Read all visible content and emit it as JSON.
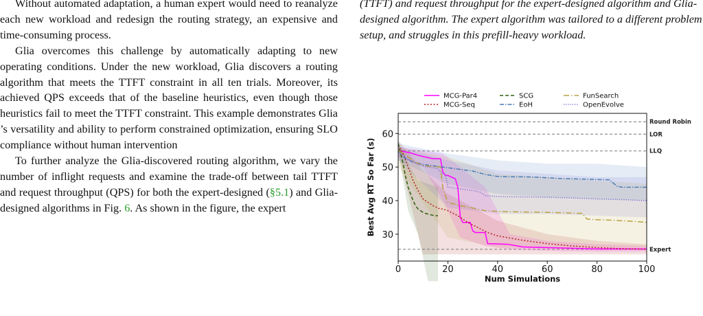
{
  "left": {
    "p1_tail": "Without automated adaptation, a human expert would need to reanalyze each new workload and redesign the routing strategy, an expensive and time-consuming process.",
    "p2": "Glia overcomes this challenge by automatically adapting to new operating conditions. Under the new workload, Glia discovers a routing algorithm that meets the TTFT constraint in all ten trials. Moreover, its achieved QPS exceeds that of the baseline heuristics, even though those heuristics fail to meet the TTFT constraint. This example demonstrates Glia ’s versatility and ability to perform constrained optimization, ensuring SLO compliance without human intervention",
    "p3_a": "To further analyze the Glia-discovered routing algorithm, we vary the number of inflight requests and examine the trade-off between tail TTFT and request throughput (QPS) for both the expert-designed (",
    "p3_cite1": "§5.1",
    "p3_b": ") and Glia-designed algorithms in Fig. ",
    "p3_cite2": "6",
    "p3_c": ". As shown in the figure, the expert"
  },
  "caption": "(TTFT) and request throughput for the expert-designed algorithm and Glia-designed algorithm. The expert algorithm was tailored to a different problem setup, and struggles in this prefill-heavy workload.",
  "chart_data": {
    "type": "line",
    "xlabel": "Num Simulations",
    "ylabel": "Best Avg RT So Far (s)",
    "xlim": [
      0,
      100
    ],
    "ylim": [
      22,
      66
    ],
    "xticks": [
      0,
      20,
      40,
      60,
      80,
      100
    ],
    "yticks": [
      30,
      40,
      50,
      60
    ],
    "grid": false,
    "legend_position": "top",
    "reference_lines": [
      {
        "label": "Round Robin",
        "y": 63.5
      },
      {
        "label": "LOR",
        "y": 59.8
      },
      {
        "label": "LLQ",
        "y": 54.8
      },
      {
        "label": "Expert",
        "y": 25.5
      }
    ],
    "series": [
      {
        "name": "MCG-Par4",
        "color": "#ff00ff",
        "dash": "",
        "x": [
          0,
          1,
          5,
          8,
          12,
          14,
          17,
          18,
          19,
          20,
          23,
          24,
          25,
          26,
          29,
          30,
          31,
          35,
          36,
          44,
          48,
          50,
          60,
          70,
          80,
          100
        ],
        "y": [
          55,
          54.8,
          54.2,
          53.5,
          52.8,
          52.5,
          52.5,
          48.5,
          47.5,
          47.5,
          46.5,
          44,
          35,
          33.5,
          33.5,
          31,
          30.5,
          30.5,
          27.2,
          27,
          26.5,
          26.2,
          26,
          25.8,
          25.6,
          25.6
        ],
        "band": {
          "x": [
            0,
            10,
            18,
            25,
            35,
            45,
            60,
            80,
            100
          ],
          "lo": [
            53,
            50,
            40,
            29,
            26.5,
            25.5,
            25,
            24.8,
            24.8
          ],
          "hi": [
            56,
            55,
            54,
            50,
            44,
            30,
            28,
            27,
            26.5
          ]
        }
      },
      {
        "name": "MCG-Seq",
        "color": "#b22222",
        "dash": "2 2.5",
        "x": [
          0,
          2,
          4,
          6,
          8,
          10,
          12,
          14,
          16,
          17,
          18,
          20,
          24,
          28,
          32,
          36,
          40,
          50,
          60,
          70,
          80,
          90,
          100
        ],
        "y": [
          56.5,
          54,
          50,
          46,
          43,
          40.5,
          39.5,
          38.5,
          37.8,
          37.5,
          37.5,
          37,
          35.5,
          33.5,
          32,
          30.5,
          29.5,
          28.2,
          27.2,
          26.5,
          26,
          25.7,
          25.5
        ],
        "band": {
          "x": [
            0,
            10,
            20,
            30,
            40,
            60,
            80,
            100
          ],
          "lo": [
            54,
            24,
            24,
            24,
            24,
            24,
            24,
            24
          ],
          "hi": [
            58,
            49,
            42,
            38,
            34,
            30,
            28,
            27
          ]
        }
      },
      {
        "name": "SCG",
        "color": "#2e5e0e",
        "dash": "5 3",
        "x": [
          0,
          1,
          2,
          3,
          4,
          5,
          6,
          7,
          8,
          9,
          10,
          11,
          12,
          13,
          14,
          15,
          16
        ],
        "y": [
          57,
          54,
          51,
          47,
          44,
          42,
          40,
          38.5,
          37.5,
          37,
          36.5,
          36.2,
          36,
          35.8,
          35.6,
          35.5,
          35.5
        ],
        "band": {
          "x": [
            0,
            4,
            8,
            12,
            16
          ],
          "lo": [
            55,
            37,
            30,
            16,
            16
          ],
          "hi": [
            58,
            51,
            46,
            45,
            44
          ]
        }
      },
      {
        "name": "EoH",
        "color": "#4a7ab5",
        "dash": "6 2 1.5 2",
        "x": [
          0,
          3,
          6,
          10,
          15,
          20,
          25,
          30,
          35,
          40,
          45,
          50,
          55,
          60,
          65,
          70,
          75,
          80,
          85,
          88,
          90,
          95,
          100
        ],
        "y": [
          55,
          52.5,
          51.5,
          50.8,
          50.3,
          49.8,
          49.3,
          48.8,
          47.8,
          47.2,
          47.1,
          47.1,
          47,
          46.8,
          46.6,
          46.5,
          46.4,
          46.3,
          46.2,
          44.3,
          44,
          44,
          44
        ],
        "band": {
          "x": [
            0,
            20,
            40,
            60,
            80,
            100
          ],
          "lo": [
            52,
            45,
            42,
            41,
            40.5,
            40
          ],
          "hi": [
            57,
            54,
            52,
            51,
            51,
            50
          ]
        }
      },
      {
        "name": "FunSearch",
        "color": "#b8a040",
        "dash": "8 3 1.5 3",
        "x": [
          0,
          3,
          5,
          8,
          10,
          13,
          17,
          18,
          20,
          25,
          30,
          35,
          40,
          50,
          60,
          70,
          74,
          76,
          80,
          85,
          90,
          95,
          100
        ],
        "y": [
          55,
          53.5,
          52.5,
          51,
          50.5,
          50.2,
          50,
          43.5,
          39.5,
          38.5,
          37.8,
          37,
          36.8,
          36.6,
          36.5,
          36.3,
          36.2,
          34.5,
          34.3,
          34.2,
          34,
          33.8,
          33.5
        ],
        "band": {
          "x": [
            0,
            20,
            40,
            60,
            80,
            100
          ],
          "lo": [
            50,
            29,
            26,
            26,
            26,
            26
          ],
          "hi": [
            56,
            53,
            48,
            47,
            46,
            45
          ]
        }
      },
      {
        "name": "OpenEvolve",
        "color": "#7b6fd1",
        "dash": "1.2 2",
        "x": [
          0,
          2,
          4,
          6,
          8,
          10,
          12,
          14,
          16,
          17,
          18,
          19,
          20,
          25,
          30,
          33,
          35,
          40,
          50,
          60,
          70,
          80,
          90,
          100
        ],
        "y": [
          54.5,
          53.5,
          52.5,
          51.5,
          50.8,
          50.3,
          50,
          49.8,
          49.5,
          48.5,
          48,
          47.8,
          44,
          43.5,
          43,
          42.5,
          41.5,
          41.2,
          41.1,
          41,
          40.8,
          40.5,
          40.3,
          40
        ],
        "band": {
          "x": [
            0,
            20,
            40,
            60,
            80,
            100
          ],
          "lo": [
            52,
            38,
            36,
            36,
            35.5,
            35
          ],
          "hi": [
            56,
            52,
            49,
            48,
            47,
            47
          ]
        }
      }
    ]
  }
}
